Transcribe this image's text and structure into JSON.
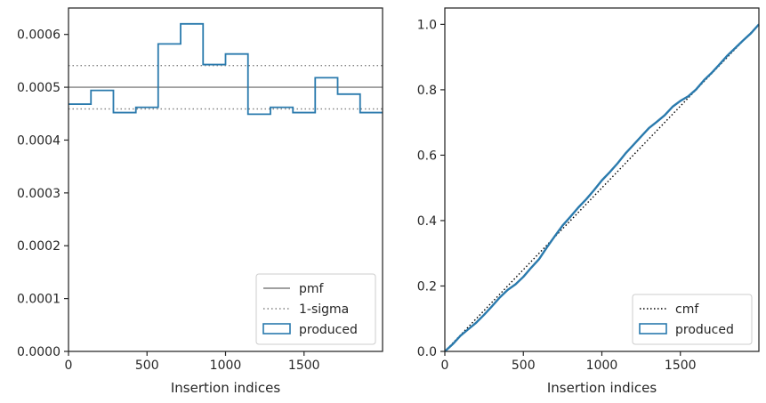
{
  "chart_data": [
    {
      "type": "line",
      "subtype": "step-histogram",
      "xlabel": "Insertion indices",
      "ylabel": "",
      "xlim": [
        0,
        2000
      ],
      "ylim": [
        0,
        0.00065
      ],
      "xticks": [
        0,
        500,
        1000,
        1500
      ],
      "xtick_labels": [
        "0",
        "500",
        "1000",
        "1500"
      ],
      "yticks": [
        0,
        0.0001,
        0.0002,
        0.0003,
        0.0004,
        0.0005,
        0.0006
      ],
      "ytick_labels": [
        "0.0000",
        "0.0001",
        "0.0002",
        "0.0003",
        "0.0004",
        "0.0005",
        "0.0006"
      ],
      "grid": false,
      "legend_position": "lower-right",
      "legend": [
        "pmf",
        "1-sigma",
        "produced"
      ],
      "pmf": 0.0005,
      "sigma_band": [
        0.000459,
        0.000541
      ],
      "bin_edges": [
        0,
        143,
        286,
        429,
        571,
        714,
        857,
        1000,
        1143,
        1286,
        1429,
        1571,
        1714,
        1857,
        2000
      ],
      "produced": [
        0.000468,
        0.000494,
        0.000452,
        0.000462,
        0.000582,
        0.00062,
        0.000543,
        0.000563,
        0.000449,
        0.000462,
        0.000452,
        0.000518,
        0.000487,
        0.000452
      ],
      "colors": {
        "pmf": "#808080",
        "sigma": "#808080",
        "produced": "#2a7aad"
      }
    },
    {
      "type": "line",
      "xlabel": "Insertion indices",
      "ylabel": "",
      "xlim": [
        0,
        2000
      ],
      "ylim": [
        0,
        1.05
      ],
      "xticks": [
        0,
        500,
        1000,
        1500
      ],
      "xtick_labels": [
        "0",
        "500",
        "1000",
        "1500"
      ],
      "yticks": [
        0,
        0.2,
        0.4,
        0.6,
        0.8,
        1.0
      ],
      "ytick_labels": [
        "0.0",
        "0.2",
        "0.4",
        "0.6",
        "0.8",
        "1.0"
      ],
      "grid": false,
      "legend_position": "lower-right",
      "legend": [
        "cmf",
        "produced"
      ],
      "cmf": {
        "x": [
          0,
          2000
        ],
        "y": [
          0,
          1.0
        ]
      },
      "produced": {
        "x": [
          0,
          50,
          100,
          150,
          200,
          250,
          300,
          350,
          400,
          450,
          500,
          550,
          600,
          650,
          700,
          750,
          800,
          850,
          900,
          950,
          1000,
          1050,
          1100,
          1150,
          1200,
          1250,
          1300,
          1350,
          1400,
          1450,
          1500,
          1550,
          1600,
          1650,
          1700,
          1750,
          1800,
          1850,
          1900,
          1950,
          2000
        ],
        "y": [
          0,
          0.022,
          0.048,
          0.068,
          0.088,
          0.112,
          0.138,
          0.165,
          0.188,
          0.205,
          0.228,
          0.256,
          0.282,
          0.318,
          0.352,
          0.385,
          0.412,
          0.44,
          0.465,
          0.493,
          0.523,
          0.548,
          0.575,
          0.605,
          0.631,
          0.657,
          0.683,
          0.702,
          0.722,
          0.748,
          0.766,
          0.78,
          0.801,
          0.829,
          0.852,
          0.878,
          0.905,
          0.928,
          0.951,
          0.973,
          1.0
        ]
      },
      "colors": {
        "cmf": "#000000",
        "produced": "#2a7aad"
      }
    }
  ]
}
